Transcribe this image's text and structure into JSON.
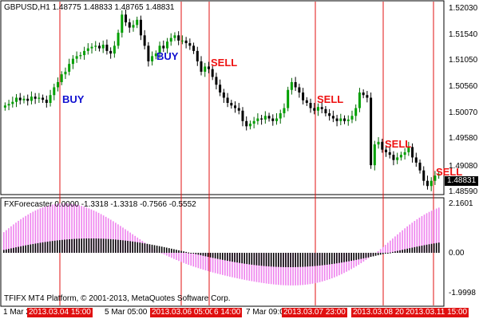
{
  "chart": {
    "header": "GBPUSD,H1  1.48775 1.48833 1.48765 1.48831",
    "current_price": "1.48831",
    "price_ticks": [
      "1.52030",
      "1.51540",
      "1.51050",
      "1.50560",
      "1.50070",
      "1.49580",
      "1.49080",
      "1.48590"
    ],
    "signals": [
      {
        "text": "BUY",
        "type": "buy"
      },
      {
        "text": "BUY",
        "type": "buy"
      },
      {
        "text": "SELL",
        "type": "sell"
      },
      {
        "text": "SELL",
        "type": "sell"
      },
      {
        "text": "SELL",
        "type": "sell"
      },
      {
        "text": "SELL",
        "type": "sell"
      }
    ]
  },
  "indicator": {
    "header": "FXForecaster 0.0000 -1.3318 -1.3318 -0.7566 -0.5552",
    "ticks": [
      "2.1601",
      "0.00",
      "-1.9998"
    ],
    "copyright": "TFIFX MT4 Platform, © 2001-2013, MetaQuotes Software Corp.",
    "colors": {
      "histogram_pos": "#ee82ee",
      "histogram_black": "#000000"
    }
  },
  "time_axis": {
    "plain_labels": [
      "1 Mar 2",
      "5 Mar 05:00",
      "7 Mar 09:00"
    ],
    "highlight_labels": [
      "2013.03.04 15:00",
      "2013.03.06 05:00",
      "6 14:00",
      "2013.03.07 23:00",
      "2013.03.08 20",
      "2013.03.11 15:00"
    ],
    "highlight_color": "#e01010"
  },
  "chart_data": {
    "type": "candlestick",
    "symbol": "GBPUSD",
    "timeframe": "H1",
    "ylim": [
      1.4845,
      1.5215
    ],
    "closes": [
      1.5015,
      1.5018,
      1.5022,
      1.503,
      1.5025,
      1.5028,
      1.5024,
      1.5032,
      1.5028,
      1.503,
      1.5026,
      1.502,
      1.5035,
      1.505,
      1.506,
      1.5075,
      1.508,
      1.5095,
      1.5105,
      1.511,
      1.5112,
      1.512,
      1.5125,
      1.5128,
      1.513,
      1.5125,
      1.5132,
      1.512,
      1.5115,
      1.513,
      1.5155,
      1.519,
      1.5175,
      1.5165,
      1.517,
      1.518,
      1.515,
      1.513,
      1.51,
      1.511,
      1.5115,
      1.513,
      1.5125,
      1.5138,
      1.5145,
      1.515,
      1.514,
      1.514,
      1.5135,
      1.513,
      1.512,
      1.51,
      1.508,
      1.509,
      1.5085,
      1.507,
      1.5055,
      1.504,
      1.503,
      1.502,
      1.5015,
      1.501,
      1.5005,
      1.4985,
      1.4975,
      1.498,
      1.4985,
      1.499,
      1.4988,
      1.4995,
      1.499,
      1.4985,
      1.499,
      1.5,
      1.501,
      1.5045,
      1.506,
      1.505,
      1.504,
      1.5025,
      1.502,
      1.501,
      1.5005,
      1.5012,
      1.5008,
      1.5,
      1.4995,
      1.499,
      1.4985,
      1.499,
      1.4985,
      1.4988,
      1.4995,
      1.501,
      1.504,
      1.5035,
      1.503,
      1.49,
      1.494,
      1.4945,
      1.493,
      1.4925,
      1.492,
      1.491,
      1.4915,
      1.492,
      1.4925,
      1.4935,
      1.4915,
      1.4905,
      1.489,
      1.487,
      1.486,
      1.487,
      1.488,
      1.4883
    ]
  }
}
